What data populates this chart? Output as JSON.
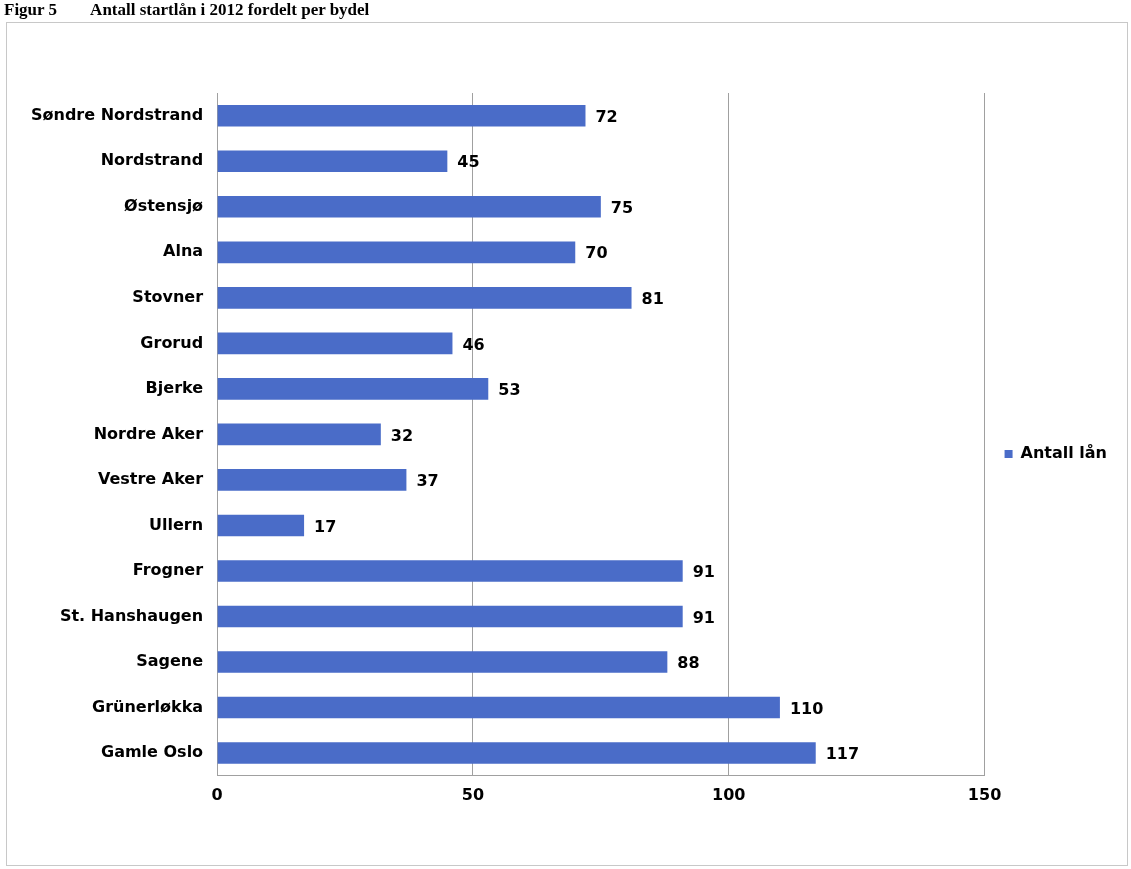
{
  "chart_data": {
    "type": "bar",
    "orientation": "horizontal",
    "title": "Figur 5        Antall startlån i 2012 fordelt per bydel",
    "categories": [
      "Søndre Nordstrand",
      "Nordstrand",
      "Østensjø",
      "Alna",
      "Stovner",
      "Grorud",
      "Bjerke",
      "Nordre Aker",
      "Vestre Aker",
      "Ullern",
      "Frogner",
      "St. Hanshaugen",
      "Sagene",
      "Grünerløkka",
      "Gamle Oslo"
    ],
    "series": [
      {
        "name": "Antall lån",
        "color": "#4a6cc8",
        "values": [
          72,
          45,
          75,
          70,
          81,
          46,
          53,
          32,
          37,
          17,
          91,
          91,
          88,
          110,
          117
        ]
      }
    ],
    "xlim": [
      0,
      150
    ],
    "xticks": [
      0,
      50,
      100,
      150
    ],
    "grid": "x",
    "legend": "right",
    "data_labels": true
  }
}
